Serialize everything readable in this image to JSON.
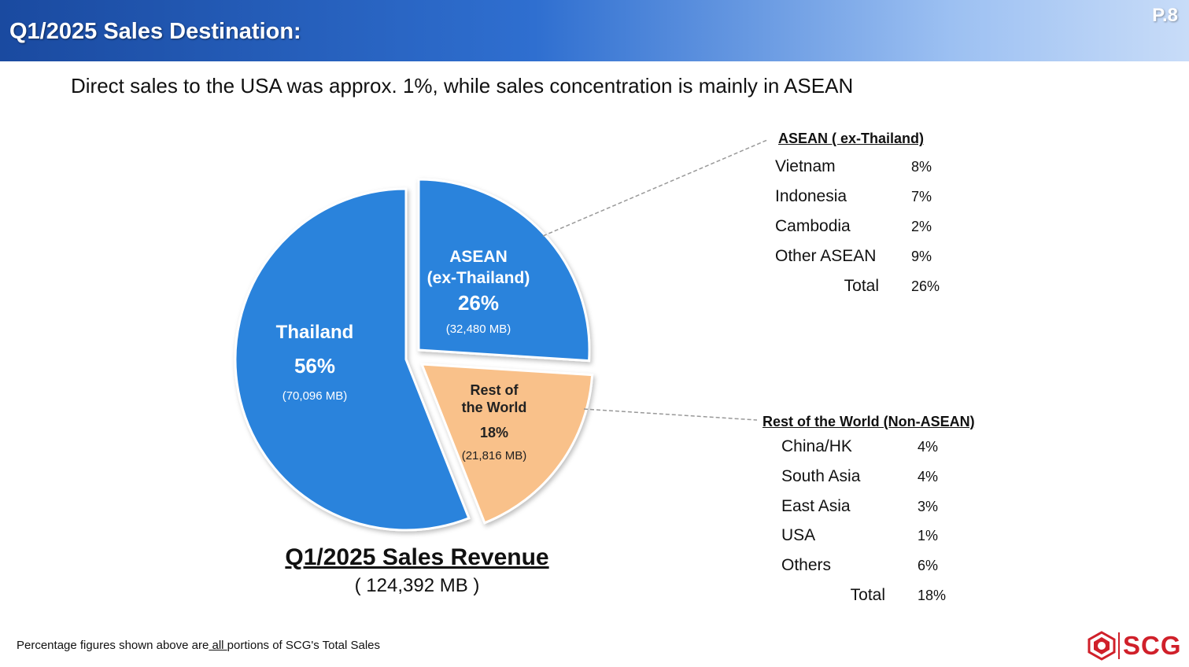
{
  "header": {
    "title": "Q1/2025 Sales Destination:",
    "page": "P.8"
  },
  "subtitle": "Direct sales to the USA was approx. 1%,  while sales concentration is mainly in ASEAN",
  "chart_data": {
    "type": "pie",
    "title": "Q1/2025 Sales Revenue",
    "total": "( 124,392 MB )",
    "slices": [
      {
        "label_line1": "ASEAN",
        "label_line2": "(ex-Thailand)",
        "value": 26,
        "pct": "26%",
        "amount": "(32,480 MB)",
        "color": "#2a83dc"
      },
      {
        "label_line1": "Rest of",
        "label_line2": "the World",
        "value": 18,
        "pct": "18%",
        "amount": "(21,816 MB)",
        "color": "#f9c18a"
      },
      {
        "label_line1": "Thailand",
        "label_line2": "",
        "value": 56,
        "pct": "56%",
        "amount": "(70,096 MB)",
        "color": "#2a83dc"
      }
    ]
  },
  "asean_breakdown": {
    "title": "ASEAN ( ex-Thailand)",
    "rows": [
      {
        "label": "Vietnam",
        "pct": "8%"
      },
      {
        "label": "Indonesia",
        "pct": "7%"
      },
      {
        "label": "Cambodia",
        "pct": "2%"
      },
      {
        "label": "Other ASEAN",
        "pct": "9%"
      }
    ],
    "total_label": "Total",
    "total_pct": "26%"
  },
  "row_breakdown": {
    "title": "Rest of the World (Non-ASEAN)",
    "rows": [
      {
        "label": "China/HK",
        "pct": "4%"
      },
      {
        "label": "South Asia",
        "pct": "4%"
      },
      {
        "label": "East Asia",
        "pct": "3%"
      },
      {
        "label": "USA",
        "pct": "1%"
      },
      {
        "label": "Others",
        "pct": "6%"
      }
    ],
    "total_label": "Total",
    "total_pct": "18%"
  },
  "footnote": {
    "before": "Percentage figures shown above  are",
    "underlined": " all ",
    "after": "portions of SCG's Total Sales"
  },
  "logo": {
    "text": "SCG",
    "color": "#d0202a"
  }
}
